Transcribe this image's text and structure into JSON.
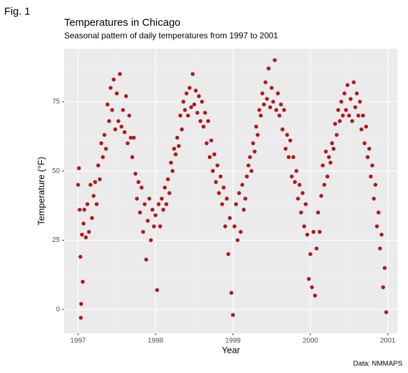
{
  "figure_label": "Fig. 1",
  "chart_data": {
    "type": "scatter",
    "title": "Temperatures in Chicago",
    "subtitle": "Seasonal pattern of daily temperatures from 1997 to 2001",
    "x_label": "Year",
    "y_label": "Temperature (°F)",
    "caption": "Data: NMMAPS",
    "color": "#b2181b",
    "grid": true,
    "xlim": [
      1996.82,
      2001.126
    ],
    "xticks": [
      1997,
      1998,
      1999,
      2000,
      2001
    ],
    "ylim": [
      -8.6,
      94.1
    ],
    "yticks": [
      0,
      25,
      50,
      75
    ],
    "x": [
      1997.0,
      1997.01,
      1997.02,
      1997.03,
      1997.035,
      1997.04,
      1997.05,
      1997.06,
      1997.07,
      1997.08,
      1997.1,
      1997.12,
      1997.14,
      1997.16,
      1997.18,
      1997.2,
      1997.22,
      1997.24,
      1997.26,
      1997.28,
      1997.3,
      1997.32,
      1997.34,
      1997.36,
      1997.38,
      1997.4,
      1997.42,
      1997.44,
      1997.46,
      1997.48,
      1997.5,
      1997.52,
      1997.54,
      1997.56,
      1997.58,
      1997.6,
      1997.62,
      1997.64,
      1997.66,
      1997.68,
      1997.7,
      1997.72,
      1997.74,
      1997.76,
      1997.78,
      1997.8,
      1997.82,
      1997.84,
      1997.86,
      1997.88,
      1997.9,
      1997.92,
      1997.94,
      1997.96,
      1997.98,
      1998.0,
      1998.02,
      1998.04,
      1998.06,
      1998.08,
      1998.1,
      1998.12,
      1998.14,
      1998.16,
      1998.18,
      1998.2,
      1998.22,
      1998.24,
      1998.26,
      1998.28,
      1998.3,
      1998.32,
      1998.34,
      1998.36,
      1998.38,
      1998.4,
      1998.42,
      1998.44,
      1998.46,
      1998.48,
      1998.5,
      1998.52,
      1998.54,
      1998.56,
      1998.58,
      1998.6,
      1998.62,
      1998.64,
      1998.66,
      1998.68,
      1998.7,
      1998.72,
      1998.74,
      1998.76,
      1998.78,
      1998.8,
      1998.82,
      1998.84,
      1998.86,
      1998.88,
      1998.9,
      1998.92,
      1998.94,
      1998.96,
      1998.98,
      1999.0,
      1999.02,
      1999.04,
      1999.06,
      1999.08,
      1999.1,
      1999.12,
      1999.14,
      1999.16,
      1999.18,
      1999.2,
      1999.22,
      1999.24,
      1999.26,
      1999.28,
      1999.3,
      1999.32,
      1999.34,
      1999.36,
      1999.38,
      1999.4,
      1999.42,
      1999.44,
      1999.46,
      1999.48,
      1999.5,
      1999.52,
      1999.54,
      1999.56,
      1999.58,
      1999.6,
      1999.62,
      1999.64,
      1999.66,
      1999.68,
      1999.7,
      1999.72,
      1999.74,
      1999.76,
      1999.78,
      1999.8,
      1999.82,
      1999.84,
      1999.86,
      1999.88,
      1999.9,
      1999.92,
      1999.94,
      1999.96,
      1999.98,
      2000.0,
      2000.02,
      2000.04,
      2000.06,
      2000.08,
      2000.1,
      2000.12,
      2000.14,
      2000.16,
      2000.18,
      2000.2,
      2000.22,
      2000.24,
      2000.26,
      2000.28,
      2000.3,
      2000.32,
      2000.34,
      2000.36,
      2000.38,
      2000.4,
      2000.42,
      2000.44,
      2000.46,
      2000.48,
      2000.5,
      2000.52,
      2000.54,
      2000.56,
      2000.58,
      2000.6,
      2000.62,
      2000.64,
      2000.66,
      2000.68,
      2000.7,
      2000.72,
      2000.74,
      2000.76,
      2000.78,
      2000.8,
      2000.82,
      2000.84,
      2000.86,
      2000.88,
      2000.9,
      2000.92,
      2000.94,
      2000.96,
      2000.98
    ],
    "values": [
      45,
      51,
      36,
      19,
      -3,
      2,
      27,
      10,
      31,
      36,
      26,
      38,
      28,
      45,
      33,
      41,
      46,
      38,
      52,
      47,
      60,
      55,
      63,
      58,
      74,
      68,
      80,
      72,
      83,
      65,
      78,
      68,
      85,
      66,
      72,
      64,
      77,
      60,
      70,
      62,
      55,
      62,
      49,
      40,
      46,
      35,
      44,
      28,
      38,
      18,
      32,
      40,
      25,
      36,
      30,
      34,
      7,
      38,
      30,
      40,
      36,
      44,
      38,
      47,
      42,
      53,
      50,
      58,
      56,
      62,
      59,
      70,
      65,
      75,
      72,
      78,
      70,
      80,
      73,
      85,
      74,
      79,
      71,
      77,
      68,
      75,
      66,
      71,
      60,
      68,
      55,
      61,
      50,
      56,
      46,
      52,
      42,
      48,
      38,
      44,
      30,
      40,
      20,
      33,
      6,
      -2,
      30,
      38,
      25,
      42,
      28,
      45,
      36,
      40,
      48,
      52,
      55,
      50,
      60,
      57,
      66,
      63,
      72,
      70,
      78,
      74,
      82,
      76,
      87,
      73,
      80,
      75,
      90,
      72,
      78,
      70,
      74,
      65,
      72,
      58,
      63,
      55,
      61,
      48,
      55,
      46,
      50,
      40,
      45,
      35,
      42,
      30,
      38,
      27,
      11,
      20,
      8,
      28,
      5,
      22,
      35,
      28,
      41,
      52,
      45,
      57,
      48,
      55,
      53,
      60,
      58,
      67,
      63,
      72,
      68,
      75,
      70,
      78,
      72,
      81,
      70,
      76,
      68,
      82,
      73,
      78,
      70,
      75,
      65,
      70,
      60,
      66,
      55,
      58,
      48,
      52,
      40,
      45,
      30,
      35,
      22,
      27,
      8,
      15,
      -1
    ]
  }
}
